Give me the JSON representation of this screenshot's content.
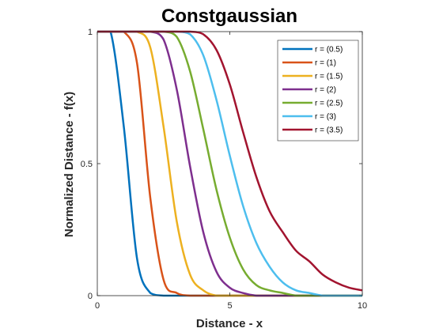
{
  "chart_data": {
    "type": "line",
    "title": "Constgaussian",
    "xlabel": "Distance - x",
    "ylabel": "Normalized Distance - f(x)",
    "xlim": [
      0,
      10
    ],
    "ylim": [
      0,
      1
    ],
    "xticks": [
      0,
      5,
      10
    ],
    "xtick_labels": [
      "0",
      "5",
      "10"
    ],
    "yticks": [
      0,
      0.5,
      1
    ],
    "ytick_labels": [
      "0",
      "0.5",
      "1"
    ],
    "grid": false,
    "legend_position": "top-right",
    "x": [
      0,
      0.5,
      1,
      1.5,
      2,
      2.5,
      3,
      3.5,
      4,
      4.5,
      5,
      5.5,
      6,
      6.5,
      7,
      7.5,
      8,
      8.5,
      9,
      9.5,
      10
    ],
    "series": [
      {
        "name": "r = (0.5)",
        "color": "#0072BD",
        "values": [
          1,
          1,
          0.64,
          0.14,
          0.01,
          0,
          0,
          0,
          0,
          0,
          0,
          0,
          0,
          0,
          0,
          0,
          0,
          0,
          0,
          0,
          0
        ]
      },
      {
        "name": "r = (1)",
        "color": "#D95319",
        "values": [
          1,
          1,
          1,
          0.88,
          0.37,
          0.06,
          0.01,
          0,
          0,
          0,
          0,
          0,
          0,
          0,
          0,
          0,
          0,
          0,
          0,
          0,
          0
        ]
      },
      {
        "name": "r = (1.5)",
        "color": "#EDB120",
        "values": [
          1,
          1,
          1,
          1,
          0.94,
          0.64,
          0.28,
          0.08,
          0.02,
          0,
          0,
          0,
          0,
          0,
          0,
          0,
          0,
          0,
          0,
          0,
          0
        ]
      },
      {
        "name": "r = (2)",
        "color": "#7E2F8E",
        "values": [
          1,
          1,
          1,
          1,
          1,
          0.97,
          0.78,
          0.49,
          0.24,
          0.09,
          0.03,
          0.01,
          0,
          0,
          0,
          0,
          0,
          0,
          0,
          0,
          0
        ]
      },
      {
        "name": "r = (2.5)",
        "color": "#77AC30",
        "values": [
          1,
          1,
          1,
          1,
          1,
          1,
          0.98,
          0.85,
          0.63,
          0.4,
          0.22,
          0.1,
          0.04,
          0.02,
          0.01,
          0,
          0,
          0,
          0,
          0,
          0
        ]
      },
      {
        "name": "r = (3)",
        "color": "#4DBEEE",
        "values": [
          1,
          1,
          1,
          1,
          1,
          1,
          1,
          0.99,
          0.91,
          0.74,
          0.53,
          0.34,
          0.2,
          0.11,
          0.05,
          0.02,
          0.01,
          0,
          0,
          0,
          0
        ]
      },
      {
        "name": "r = (3.5)",
        "color": "#A2142F",
        "values": [
          1,
          1,
          1,
          1,
          1,
          1,
          1,
          1,
          0.99,
          0.93,
          0.8,
          0.62,
          0.45,
          0.32,
          0.24,
          0.17,
          0.13,
          0.08,
          0.05,
          0.03,
          0.02
        ]
      }
    ]
  }
}
